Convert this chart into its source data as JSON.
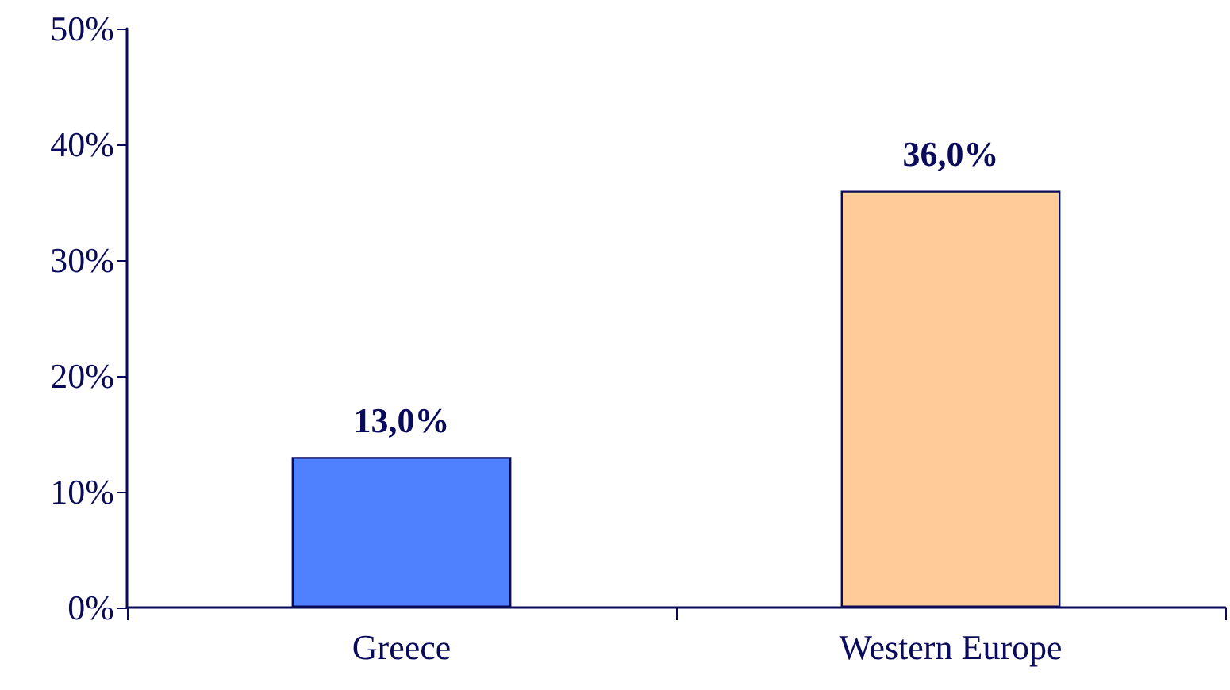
{
  "chart_data": {
    "type": "bar",
    "categories": [
      "Greece",
      "Western Europe"
    ],
    "values": [
      13,
      36
    ],
    "colors": [
      "#4f81ff",
      "#ffcc99"
    ],
    "value_labels": [
      "13,0%",
      "36,0%"
    ],
    "ylim": [
      0,
      50
    ],
    "yticks": [
      {
        "value": 0,
        "label": "0%"
      },
      {
        "value": 10,
        "label": "10%"
      },
      {
        "value": 20,
        "label": "20%"
      },
      {
        "value": 30,
        "label": "30%"
      },
      {
        "value": 40,
        "label": "40%"
      },
      {
        "value": 50,
        "label": "50%"
      }
    ]
  }
}
